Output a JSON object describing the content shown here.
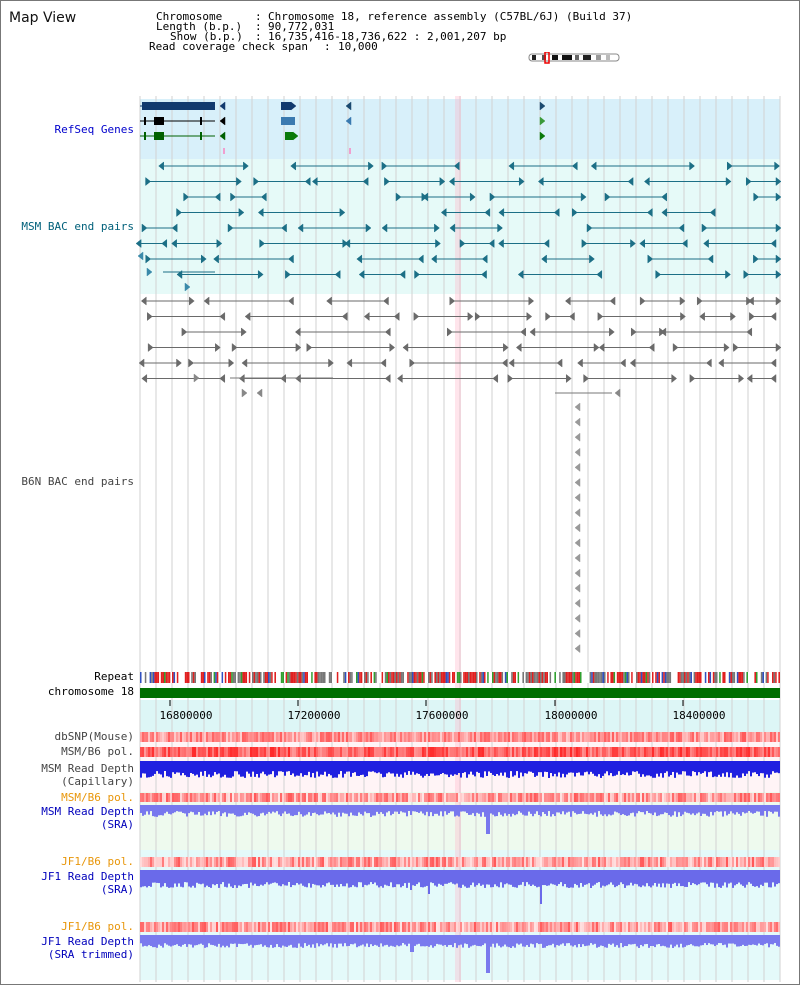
{
  "title": "Map View",
  "header": {
    "chrom_key": "Chromosome",
    "chrom_val": "Chromosome 18, reference assembly (C57BL/6J) (Build 37)",
    "length_key": "Length (b.p.)",
    "length_val": "90,772,031",
    "show_key": "Show (b.p.)",
    "show_val": "16,735,416-18,736,622 : 2,001,207 bp",
    "span_key": "Read coverage check span",
    "span_val": "10,000",
    "sep": ":"
  },
  "tracks": {
    "refseq": "RefSeq Genes",
    "msm_bac": "MSM BAC end pairs",
    "b6n_bac": "B6N BAC end pairs",
    "repeat": "Repeat",
    "chromosome": "chromosome 18",
    "dbsnp": "dbSNP(Mouse)",
    "msm_pol1": "MSM/B6 pol.",
    "msm_depth_cap_1": "MSM Read Depth",
    "msm_depth_cap_2": "(Capillary)",
    "msm_pol2": "MSM/B6 pol.",
    "msm_depth_sra_1": "MSM Read Depth",
    "msm_depth_sra_2": "(SRA)",
    "jf1_pol1": "JF1/B6 pol.",
    "jf1_depth_sra_1": "JF1 Read Depth",
    "jf1_depth_sra_2": "(SRA)",
    "jf1_pol2": "JF1/B6 pol.",
    "jf1_depth_trim_1": "JF1 Read Depth",
    "jf1_depth_trim_2": "(SRA trimmed)"
  },
  "axis_ticks": [
    "16800000",
    "17200000",
    "17600000",
    "18000000",
    "18400000"
  ],
  "colors": {
    "refseq_label": "#0000cc",
    "msm_bac_label": "#00607a",
    "b6n_bac_label": "#444444",
    "pol_orange": "#e8960a",
    "depth_blue": "#0000bb",
    "chrom_green": "#006e00",
    "refseq_bg": "#d8f0fa",
    "msm_bg": "#e6faf8"
  }
}
